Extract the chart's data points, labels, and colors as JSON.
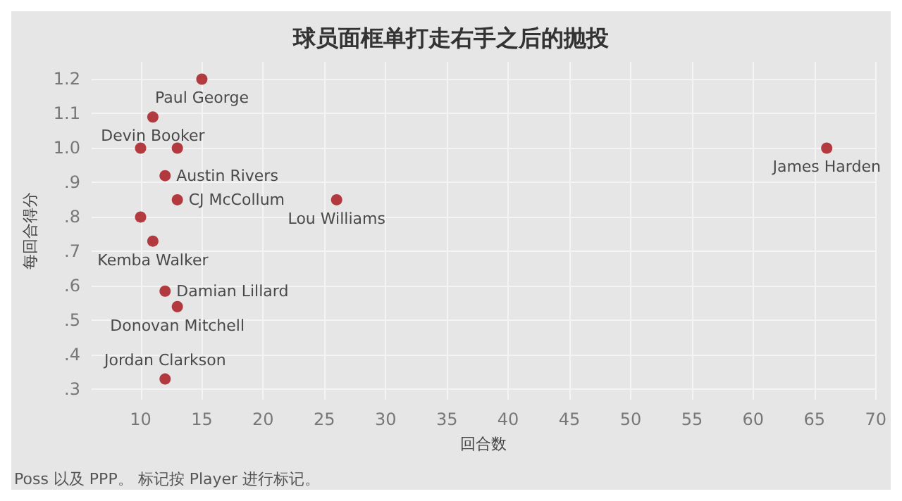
{
  "chart_data": {
    "type": "scatter",
    "title": "球员面框单打走右手之后的抛投",
    "xlabel": "回合数",
    "ylabel": "每回合得分",
    "x": [
      15,
      11,
      10,
      13,
      12,
      13,
      26,
      10,
      11,
      12,
      13,
      12,
      66
    ],
    "values": [
      1.2,
      1.09,
      1.0,
      1.0,
      0.92,
      0.85,
      0.85,
      0.8,
      0.73,
      0.585,
      0.54,
      0.33,
      1.0
    ],
    "value_labels": [
      "Paul George",
      "Devin Booker",
      null,
      null,
      "Austin Rivers",
      "CJ McCollum",
      "Lou Williams",
      null,
      "Kemba Walker",
      "Damian Lillard",
      "Donovan Mitchell",
      "Jordan Clarkson",
      "James Harden"
    ],
    "color": "#a50f15",
    "marker": "circle",
    "grid": true,
    "xlim": [
      6,
      70
    ],
    "xticks": [
      10,
      15,
      20,
      25,
      30,
      35,
      40,
      45,
      50,
      55,
      60,
      65,
      70
    ],
    "ylim": [
      0.27,
      1.25
    ],
    "yticks": [
      {
        "value": 0.3,
        "label": ".3"
      },
      {
        "value": 0.4,
        "label": ".4"
      },
      {
        "value": 0.5,
        "label": ".5"
      },
      {
        "value": 0.6,
        "label": ".6"
      },
      {
        "value": 0.7,
        "label": ".7"
      },
      {
        "value": 0.8,
        "label": ".8"
      },
      {
        "value": 0.9,
        "label": ".9"
      },
      {
        "value": 1.0,
        "label": "1.0"
      },
      {
        "value": 1.1,
        "label": "1.1"
      },
      {
        "value": 1.2,
        "label": "1.2"
      }
    ],
    "annotations": [
      "Poss 以及 PPP。 标记按 Player 进行标记。"
    ]
  }
}
